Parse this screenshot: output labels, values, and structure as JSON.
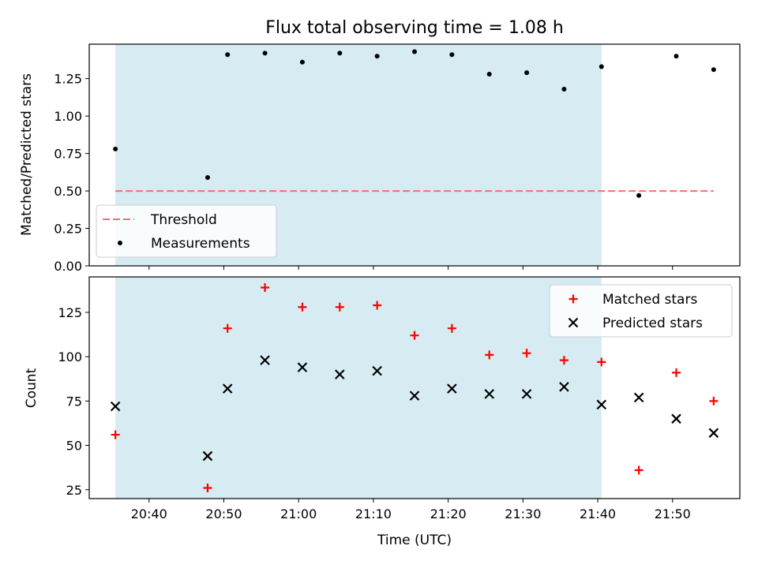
{
  "title": "Flux total observing time = 1.08 h",
  "chart_data": [
    {
      "type": "scatter",
      "ylabel": "Matched/Predicted stars",
      "xlabel": "",
      "xlim": [
        "20:32",
        "21:59"
      ],
      "ylim": [
        0,
        1.48
      ],
      "yticks": [
        0.0,
        0.25,
        0.5,
        0.75,
        1.0,
        1.25
      ],
      "ytick_labels": [
        "0.00",
        "0.25",
        "0.50",
        "0.75",
        "1.00",
        "1.25"
      ],
      "xticks": [
        "20:40",
        "20:50",
        "21:00",
        "21:10",
        "21:20",
        "21:30",
        "21:40",
        "21:50"
      ],
      "shaded_region": {
        "from": "20:35:30",
        "to": "21:40:30",
        "color": "#add8e6"
      },
      "threshold": {
        "name": "Threshold",
        "y": 0.5,
        "from": "20:35:30",
        "to": "21:55:30",
        "color": "#f07070"
      },
      "series": [
        {
          "name": "Measurements",
          "marker": "dot",
          "color": "#000000",
          "x": [
            "20:35:30",
            "20:47:50",
            "20:50:30",
            "20:55:30",
            "21:00:30",
            "21:05:30",
            "21:10:30",
            "21:15:30",
            "21:20:30",
            "21:25:30",
            "21:30:30",
            "21:35:30",
            "21:40:30",
            "21:45:30",
            "21:50:30",
            "21:55:30"
          ],
          "y": [
            0.78,
            0.59,
            1.41,
            1.42,
            1.36,
            1.42,
            1.4,
            1.43,
            1.41,
            1.28,
            1.29,
            1.18,
            1.33,
            0.47,
            1.4,
            1.31
          ]
        }
      ],
      "legend": {
        "placement": "lower-left",
        "entries": [
          "Threshold",
          "Measurements"
        ]
      }
    },
    {
      "type": "scatter",
      "ylabel": "Count",
      "xlabel": "Time (UTC)",
      "xlim": [
        "20:32",
        "21:59"
      ],
      "ylim": [
        20,
        145
      ],
      "yticks": [
        25,
        50,
        75,
        100,
        125
      ],
      "ytick_labels": [
        "25",
        "50",
        "75",
        "100",
        "125"
      ],
      "xticks": [
        "20:40",
        "20:50",
        "21:00",
        "21:10",
        "21:20",
        "21:30",
        "21:40",
        "21:50"
      ],
      "xtick_labels": [
        "20:40",
        "20:50",
        "21:00",
        "21:10",
        "21:20",
        "21:30",
        "21:40",
        "21:50"
      ],
      "shaded_region": {
        "from": "20:35:30",
        "to": "21:40:30",
        "color": "#add8e6"
      },
      "series": [
        {
          "name": "Matched stars",
          "marker": "plus",
          "color": "#ff0000",
          "x": [
            "20:35:30",
            "20:47:50",
            "20:50:30",
            "20:55:30",
            "21:00:30",
            "21:05:30",
            "21:10:30",
            "21:15:30",
            "21:20:30",
            "21:25:30",
            "21:30:30",
            "21:35:30",
            "21:40:30",
            "21:45:30",
            "21:50:30",
            "21:55:30"
          ],
          "y": [
            56,
            26,
            116,
            139,
            128,
            128,
            129,
            112,
            116,
            101,
            102,
            98,
            97,
            36,
            91,
            75
          ]
        },
        {
          "name": "Predicted stars",
          "marker": "x",
          "color": "#000000",
          "x": [
            "20:35:30",
            "20:47:50",
            "20:50:30",
            "20:55:30",
            "21:00:30",
            "21:05:30",
            "21:10:30",
            "21:15:30",
            "21:20:30",
            "21:25:30",
            "21:30:30",
            "21:35:30",
            "21:40:30",
            "21:45:30",
            "21:50:30",
            "21:55:30"
          ],
          "y": [
            72,
            44,
            82,
            98,
            94,
            90,
            92,
            78,
            82,
            79,
            79,
            83,
            73,
            77,
            65,
            57
          ]
        }
      ],
      "legend": {
        "placement": "upper-right",
        "entries": [
          "Matched stars",
          "Predicted stars"
        ]
      }
    }
  ]
}
